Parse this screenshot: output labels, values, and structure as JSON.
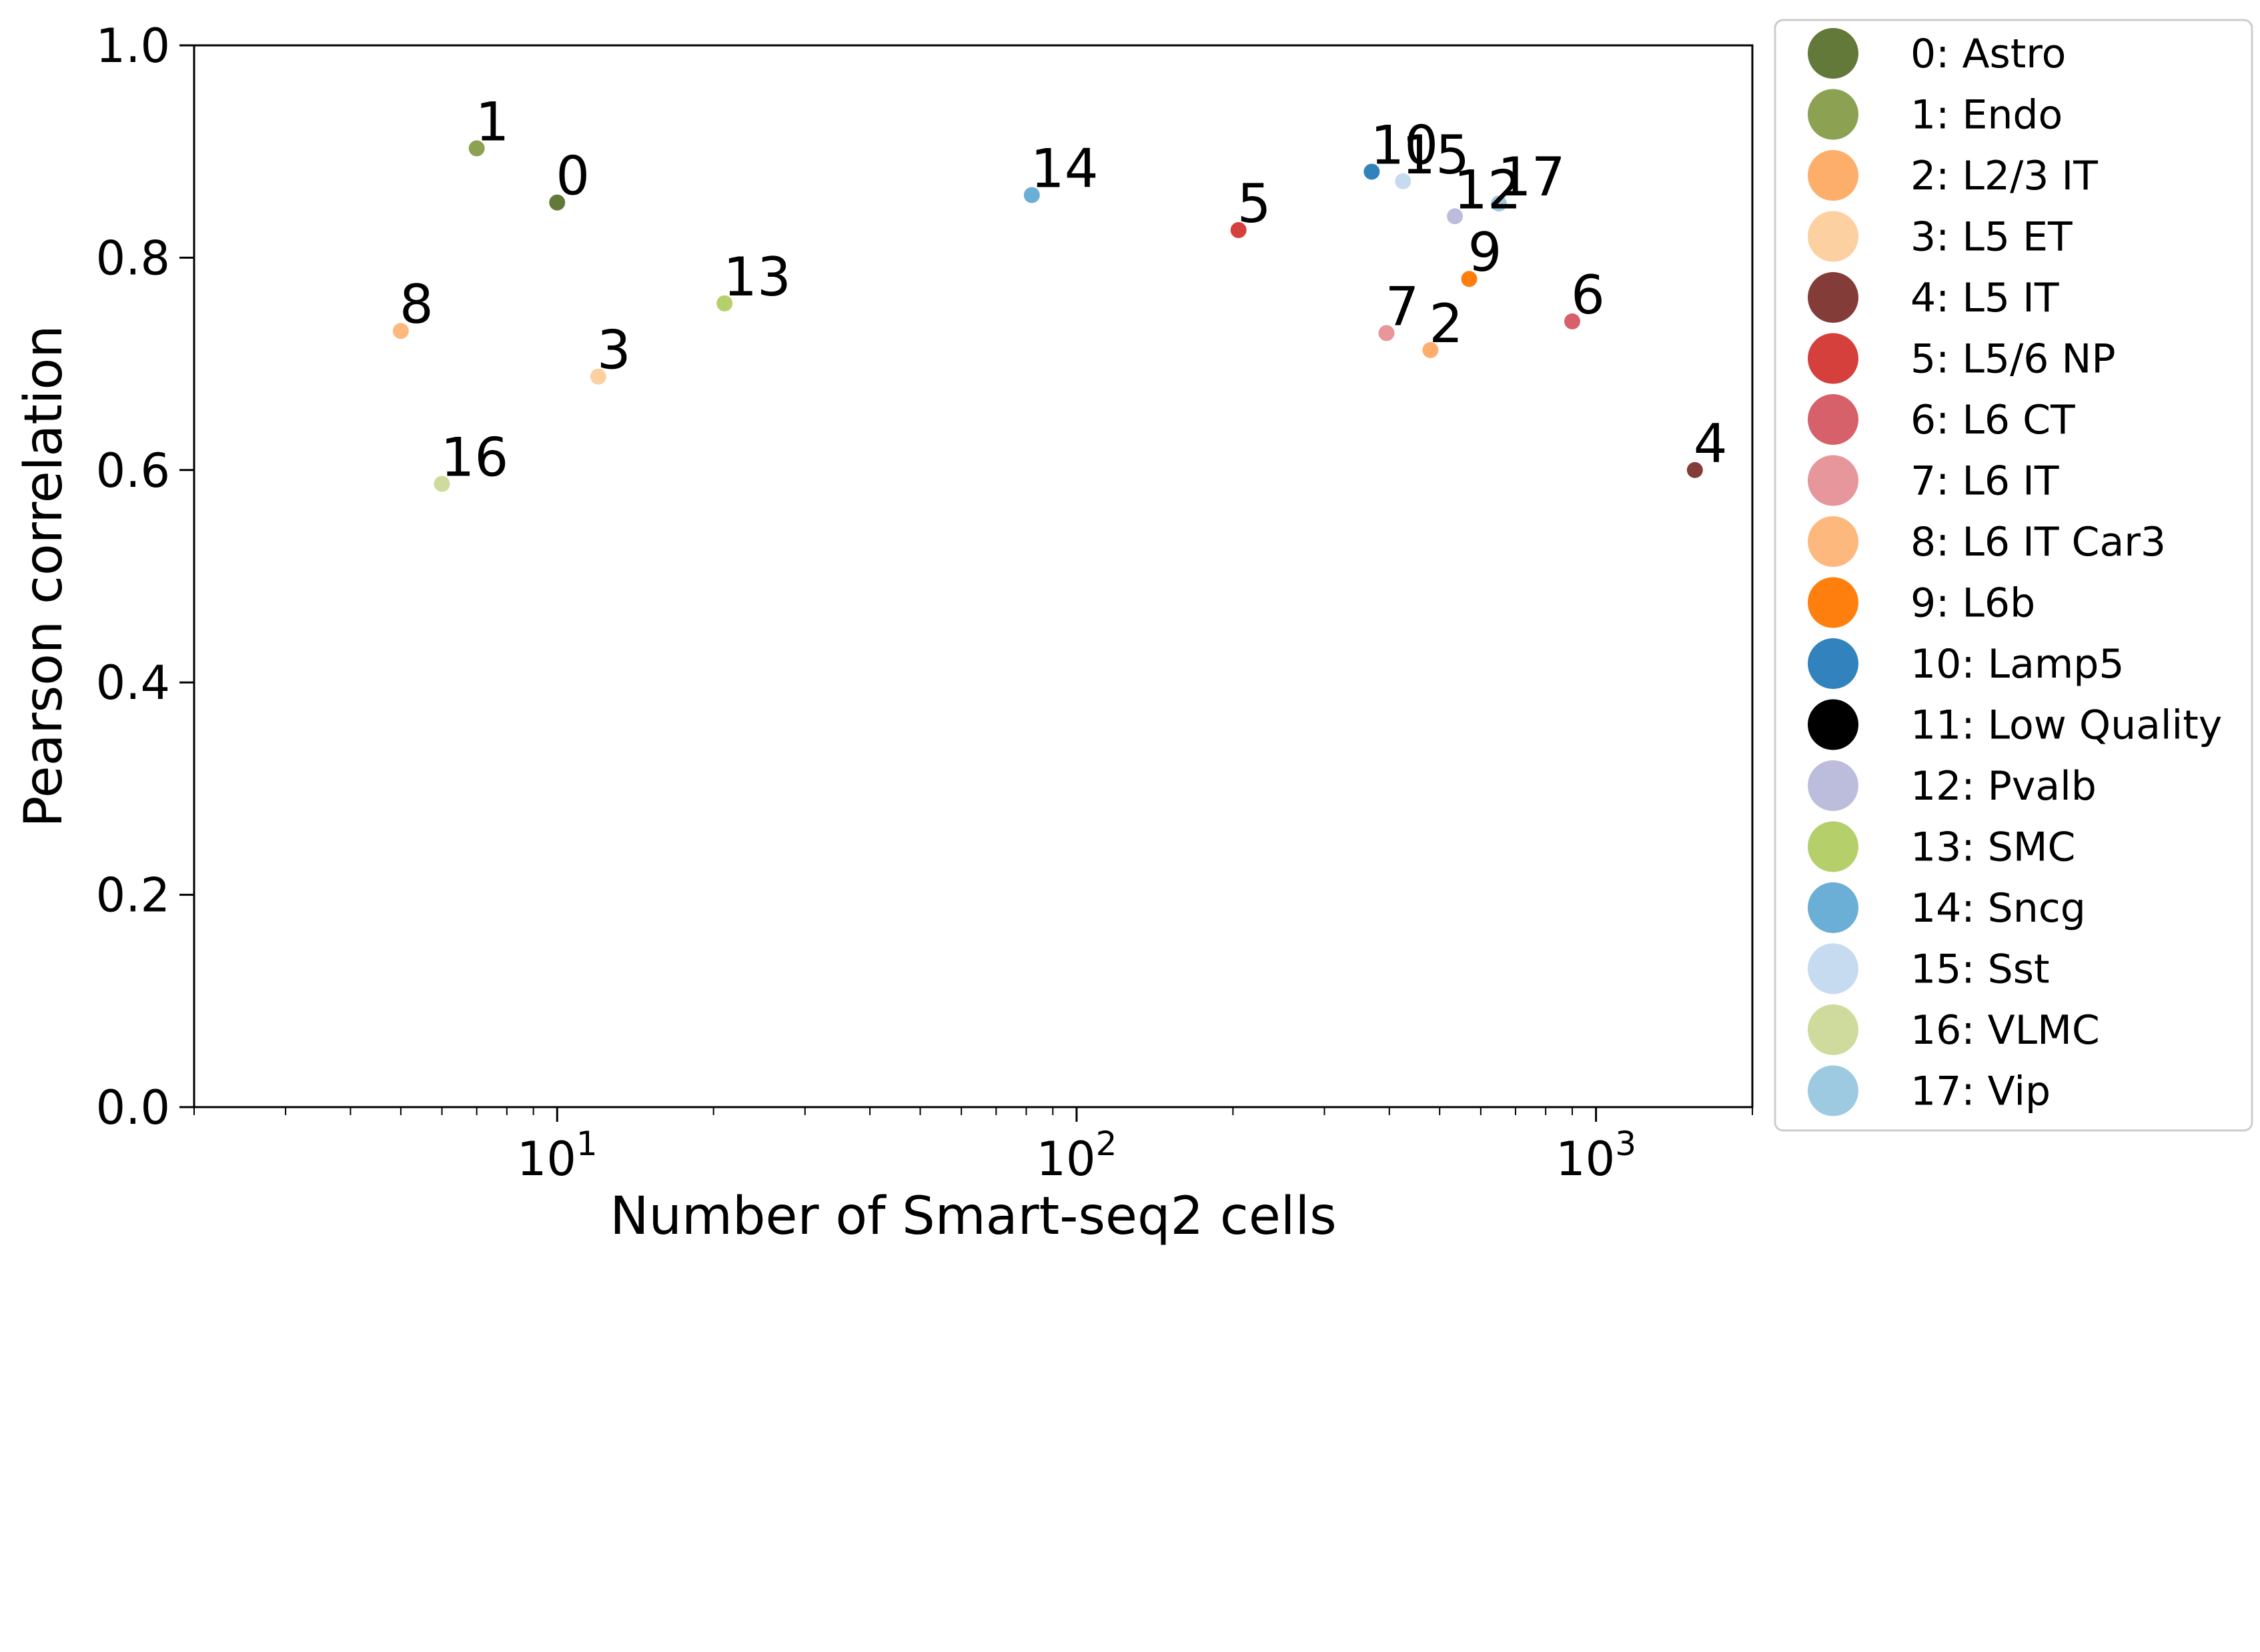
{
  "chart_data": {
    "type": "scatter",
    "title": "",
    "xlabel": "Number of Smart-seq2 cells",
    "ylabel": "Pearson correlation",
    "xscale": "log",
    "xlim": [
      2,
      2000
    ],
    "ylim": [
      0.0,
      1.0
    ],
    "grid": false,
    "legend_position": "outside-right",
    "x_major_ticks": [
      10,
      100,
      1000
    ],
    "x_tick_labels": [
      {
        "base": "10",
        "exp": "1"
      },
      {
        "base": "10",
        "exp": "2"
      },
      {
        "base": "10",
        "exp": "3"
      }
    ],
    "y_ticks": [
      0.0,
      0.2,
      0.4,
      0.6,
      0.8,
      1.0
    ],
    "y_tick_labels": [
      "0.0",
      "0.2",
      "0.4",
      "0.6",
      "0.8",
      "1.0"
    ],
    "points": [
      {
        "label": "0",
        "x": 10,
        "y": 0.852,
        "color": "#637939"
      },
      {
        "label": "1",
        "x": 7,
        "y": 0.903,
        "color": "#8ca252"
      },
      {
        "label": "2",
        "x": 480,
        "y": 0.713,
        "color": "#fdae6b"
      },
      {
        "label": "3",
        "x": 12,
        "y": 0.688,
        "color": "#fdd0a2"
      },
      {
        "label": "4",
        "x": 1550,
        "y": 0.6,
        "color": "#843c39"
      },
      {
        "label": "5",
        "x": 205,
        "y": 0.826,
        "color": "#d6403c"
      },
      {
        "label": "6",
        "x": 900,
        "y": 0.74,
        "color": "#d6616b"
      },
      {
        "label": "7",
        "x": 395,
        "y": 0.729,
        "color": "#e7969c"
      },
      {
        "label": "8",
        "x": 5,
        "y": 0.731,
        "color": "#fdb97d"
      },
      {
        "label": "9",
        "x": 570,
        "y": 0.78,
        "color": "#ff7f0e"
      },
      {
        "label": "10",
        "x": 370,
        "y": 0.881,
        "color": "#3182bd"
      },
      {
        "label": "12",
        "x": 535,
        "y": 0.839,
        "color": "#bcbddc"
      },
      {
        "label": "13",
        "x": 21,
        "y": 0.757,
        "color": "#b5cf6b"
      },
      {
        "label": "14",
        "x": 82,
        "y": 0.859,
        "color": "#6baed6"
      },
      {
        "label": "15",
        "x": 425,
        "y": 0.872,
        "color": "#c6dbef"
      },
      {
        "label": "16",
        "x": 6,
        "y": 0.587,
        "color": "#cedb9c"
      },
      {
        "label": "17",
        "x": 650,
        "y": 0.851,
        "color": "#9ecae1"
      }
    ],
    "legend": [
      {
        "label": "0: Astro",
        "color": "#637939"
      },
      {
        "label": "1: Endo",
        "color": "#8ca252"
      },
      {
        "label": "2: L2/3 IT",
        "color": "#fdae6b"
      },
      {
        "label": "3: L5 ET",
        "color": "#fdd0a2"
      },
      {
        "label": "4: L5 IT",
        "color": "#843c39"
      },
      {
        "label": "5: L5/6 NP",
        "color": "#d6403c"
      },
      {
        "label": "6: L6 CT",
        "color": "#d6616b"
      },
      {
        "label": "7: L6 IT",
        "color": "#e7969c"
      },
      {
        "label": "8: L6 IT Car3",
        "color": "#fdb97d"
      },
      {
        "label": "9: L6b",
        "color": "#ff7f0e"
      },
      {
        "label": "10: Lamp5",
        "color": "#3182bd"
      },
      {
        "label": "11: Low Quality",
        "color": "#000000"
      },
      {
        "label": "12: Pvalb",
        "color": "#bcbddc"
      },
      {
        "label": "13: SMC",
        "color": "#b5cf6b"
      },
      {
        "label": "14: Sncg",
        "color": "#6baed6"
      },
      {
        "label": "15: Sst",
        "color": "#c6dbef"
      },
      {
        "label": "16: VLMC",
        "color": "#cedb9c"
      },
      {
        "label": "17: Vip",
        "color": "#9ecae1"
      }
    ]
  }
}
